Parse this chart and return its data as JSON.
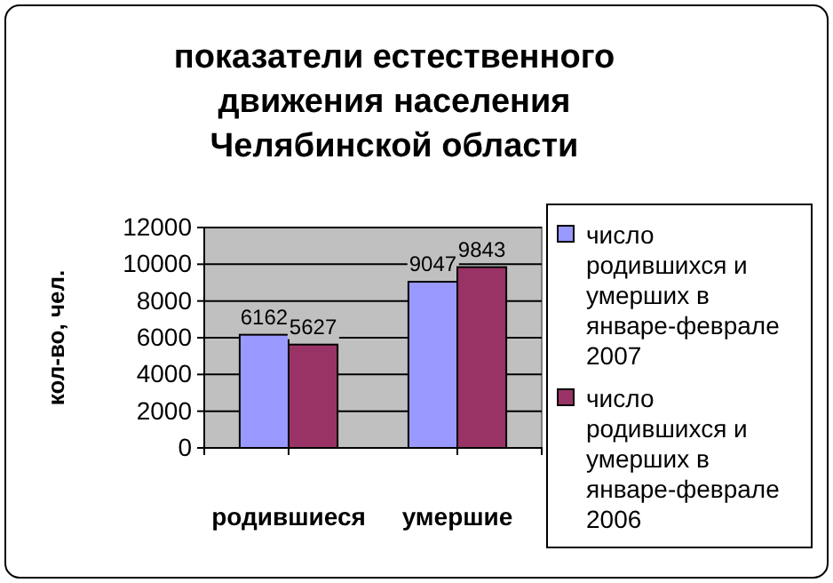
{
  "chart_data": {
    "type": "bar",
    "title": "показатели естественного движения населения Челябинской области",
    "ylabel": "кол-во, чел.",
    "categories": [
      "родившиеся",
      "умершие"
    ],
    "series": [
      {
        "name": "число родившихся и умерших в январе-феврале 2007",
        "color": "#9999ff",
        "values": [
          6162,
          9047
        ]
      },
      {
        "name": "число родившихся и умерших в январе-феврале 2006",
        "color": "#993366",
        "values": [
          5627,
          9843
        ]
      }
    ],
    "ylim": [
      0,
      12000
    ],
    "yticks": [
      0,
      2000,
      4000,
      6000,
      8000,
      10000,
      12000
    ],
    "grid": "y",
    "legend": "right",
    "data_labels": true
  }
}
